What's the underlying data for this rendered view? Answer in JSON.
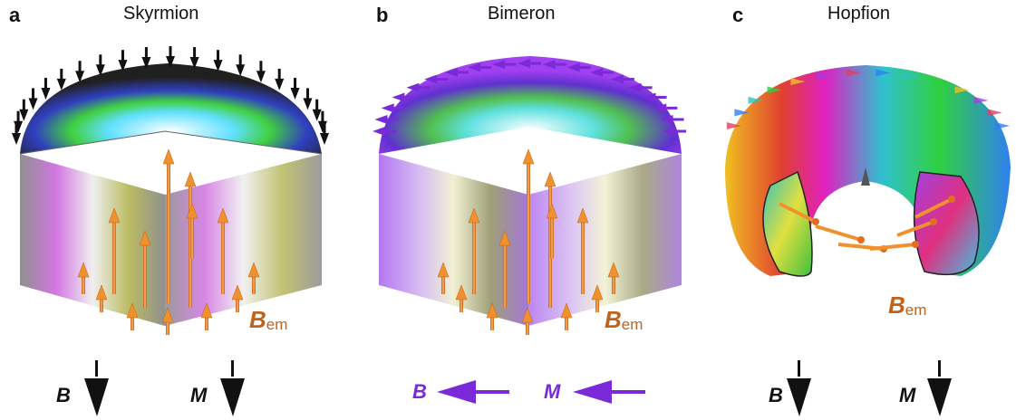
{
  "panels": [
    {
      "letter": "a",
      "title": "Skyrmion",
      "field_label": "B",
      "field_sub": "em",
      "legend_b": "B",
      "legend_m": "M"
    },
    {
      "letter": "b",
      "title": "Bimeron",
      "field_label": "B",
      "field_sub": "em",
      "legend_b": "B",
      "legend_m": "M"
    },
    {
      "letter": "c",
      "title": "Hopfion",
      "field_label": "B",
      "field_sub": "em",
      "legend_b": "B",
      "legend_m": "M"
    }
  ],
  "colors": {
    "bem_arrow": "#f0912e",
    "bem_text": "#c0621a",
    "bimeron_legend": "#7a2ad8",
    "dark": "#111111"
  }
}
